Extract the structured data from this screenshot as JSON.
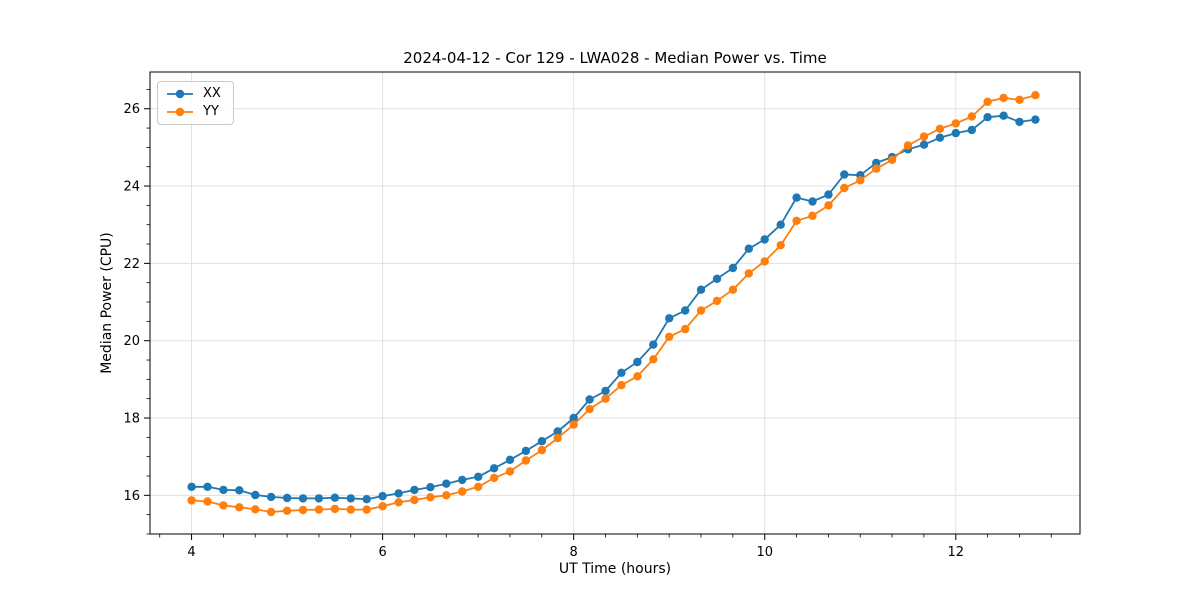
{
  "chart_data": {
    "type": "line",
    "title": "2024-04-12 - Cor 129 - LWA028 - Median Power vs. Time",
    "xlabel": "UT Time (hours)",
    "ylabel": "Median Power (CPU)",
    "x": [
      4.0,
      4.167,
      4.333,
      4.5,
      4.667,
      4.833,
      5.0,
      5.167,
      5.333,
      5.5,
      5.667,
      5.833,
      6.0,
      6.167,
      6.333,
      6.5,
      6.667,
      6.833,
      7.0,
      7.167,
      7.333,
      7.5,
      7.667,
      7.833,
      8.0,
      8.167,
      8.333,
      8.5,
      8.667,
      8.833,
      9.0,
      9.167,
      9.333,
      9.5,
      9.667,
      9.833,
      10.0,
      10.167,
      10.333,
      10.5,
      10.667,
      10.833,
      11.0,
      11.167,
      11.333,
      11.5,
      11.667,
      11.833,
      12.0,
      12.167,
      12.333,
      12.5,
      12.667,
      12.833
    ],
    "series": [
      {
        "name": "XX",
        "color": "#1f77b4",
        "values": [
          16.22,
          16.22,
          16.14,
          16.13,
          16.01,
          15.96,
          15.93,
          15.92,
          15.92,
          15.94,
          15.92,
          15.9,
          15.98,
          16.05,
          16.14,
          16.21,
          16.3,
          16.4,
          16.48,
          16.7,
          16.92,
          17.15,
          17.4,
          17.65,
          18.0,
          18.48,
          18.7,
          19.17,
          19.45,
          19.9,
          20.58,
          20.78,
          21.32,
          21.6,
          21.88,
          22.38,
          22.62,
          23.0,
          23.7,
          23.6,
          23.78,
          24.3,
          24.28,
          24.6,
          24.75,
          24.95,
          25.07,
          25.25,
          25.37,
          25.45,
          25.78,
          25.82,
          25.66,
          25.72
        ]
      },
      {
        "name": "YY",
        "color": "#ff7f0e",
        "values": [
          15.87,
          15.84,
          15.74,
          15.69,
          15.64,
          15.57,
          15.6,
          15.62,
          15.63,
          15.65,
          15.63,
          15.63,
          15.72,
          15.82,
          15.88,
          15.95,
          16.0,
          16.1,
          16.22,
          16.45,
          16.62,
          16.9,
          17.17,
          17.48,
          17.83,
          18.23,
          18.5,
          18.85,
          19.08,
          19.52,
          20.1,
          20.3,
          20.78,
          21.03,
          21.32,
          21.74,
          22.05,
          22.47,
          23.1,
          23.23,
          23.5,
          23.95,
          24.15,
          24.45,
          24.68,
          25.05,
          25.28,
          25.48,
          25.62,
          25.8,
          26.18,
          26.28,
          26.23,
          26.35
        ]
      }
    ],
    "x_ticks": [
      4,
      6,
      8,
      10,
      12
    ],
    "y_ticks": [
      16,
      18,
      20,
      22,
      24,
      26
    ],
    "x_minor_step": 0.3333,
    "y_minor_step": 0.5,
    "xlim": [
      3.565,
      13.3
    ],
    "ylim": [
      15.0,
      26.95
    ],
    "grid": true,
    "legend_position": "upper left",
    "marker": "circle"
  },
  "style": {
    "grid_color": "#e0e0e0",
    "spine_color": "#000000",
    "tick_color": "#000000",
    "background": "#ffffff"
  }
}
